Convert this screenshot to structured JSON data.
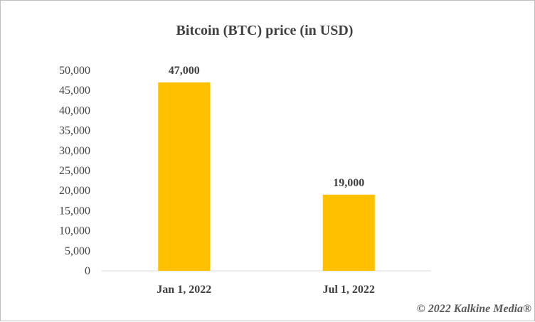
{
  "chart_data": {
    "type": "bar",
    "title": "Bitcoin (BTC) price (in USD)",
    "categories": [
      "Jan 1, 2022",
      "Jul 1, 2022"
    ],
    "values": [
      47000,
      19000
    ],
    "data_labels": [
      "47,000",
      "19,000"
    ],
    "yticks": [
      "0",
      "5,000",
      "10,000",
      "15,000",
      "20,000",
      "25,000",
      "30,000",
      "35,000",
      "40,000",
      "45,000",
      "50,000"
    ],
    "ylim": [
      0,
      50000
    ],
    "xlabel": "",
    "ylabel": "",
    "grid": false,
    "legend": "none",
    "bar_color": "#FFC000",
    "axis_color": "#d9d9d9"
  },
  "credit": "© 2022 Kalkine Media®"
}
